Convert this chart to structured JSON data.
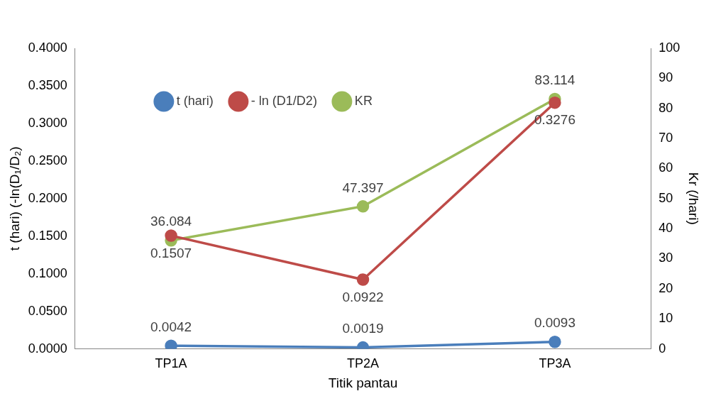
{
  "chart_data": {
    "type": "line",
    "xlabel": "Titik pantau",
    "ylabel": "t (hari) (-ln(D₁/D₂)",
    "y2label": "Kr (/hari)",
    "categories": [
      "TP1A",
      "TP2A",
      "TP3A"
    ],
    "series": [
      {
        "name": "t (hari)",
        "color": "#4a7ebb",
        "values": [
          0.0042,
          0.0019,
          0.0093
        ]
      },
      {
        "name": "- ln (D1/D2)",
        "color": "#be4b48",
        "values": [
          0.1507,
          0.0922,
          0.3276
        ]
      },
      {
        "name": "KR",
        "color": "#9bbb59",
        "values": [
          36.084,
          47.397,
          83.114
        ],
        "axis": "y2"
      }
    ],
    "ylim": [
      0,
      0.4
    ],
    "yticks": [
      {
        "value": 0,
        "label": "0.0000"
      },
      {
        "value": 0.05,
        "label": "0.0500"
      },
      {
        "value": 0.1,
        "label": "0.1000"
      },
      {
        "value": 0.15,
        "label": "0.1500"
      },
      {
        "value": 0.2,
        "label": "0.2000"
      },
      {
        "value": 0.25,
        "label": "0.2500"
      },
      {
        "value": 0.3,
        "label": "0.3000"
      },
      {
        "value": 0.35,
        "label": "0.3500"
      },
      {
        "value": 0.4,
        "label": "0.4000"
      }
    ],
    "y2lim": [
      0,
      100
    ],
    "y2ticks": [
      0,
      10,
      20,
      30,
      40,
      50,
      60,
      70,
      80,
      90,
      100
    ],
    "data_labels": true,
    "legend": "top left",
    "marker": "circle",
    "line_style": "solid",
    "grid": false
  }
}
